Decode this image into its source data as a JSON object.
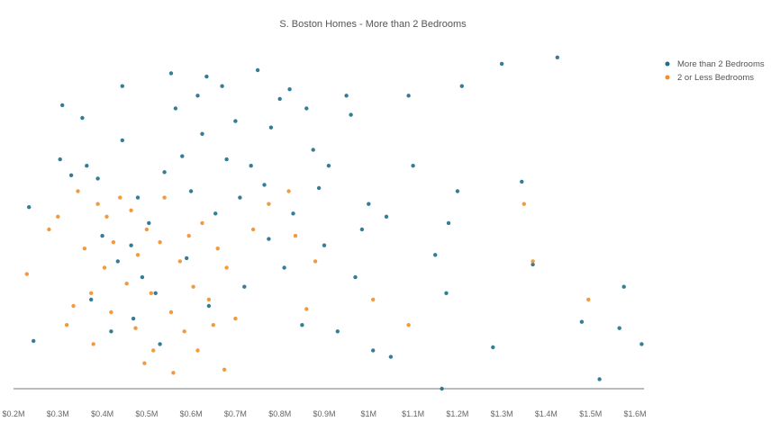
{
  "chart_data": {
    "type": "scatter",
    "title": "S. Boston Homes - More than 2 Bedrooms",
    "xlabel": "",
    "ylabel": "",
    "xlim": [
      0.2,
      1.6
    ],
    "ylim": [
      0,
      100
    ],
    "x_ticks": [
      "$0.2M",
      "$0.3M",
      "$0.4M",
      "$0.5M",
      "$0.6M",
      "$0.7M",
      "$0.8M",
      "$0.9M",
      "$1M",
      "$1.1M",
      "$1.2M",
      "$1.3M",
      "$1.4M",
      "$1.5M",
      "$1.6M"
    ],
    "legend_position": "top-right",
    "grid": false,
    "series": [
      {
        "name": "More than 2 Bedrooms",
        "color": "#1f6f8b",
        "points": [
          [
            0.235,
            57
          ],
          [
            0.245,
            15
          ],
          [
            0.305,
            72
          ],
          [
            0.31,
            89
          ],
          [
            0.33,
            67
          ],
          [
            0.355,
            85
          ],
          [
            0.365,
            70
          ],
          [
            0.375,
            28
          ],
          [
            0.39,
            66
          ],
          [
            0.4,
            48
          ],
          [
            0.42,
            18
          ],
          [
            0.435,
            40
          ],
          [
            0.445,
            78
          ],
          [
            0.445,
            95
          ],
          [
            0.465,
            45
          ],
          [
            0.47,
            22
          ],
          [
            0.48,
            60
          ],
          [
            0.49,
            35
          ],
          [
            0.505,
            52
          ],
          [
            0.52,
            30
          ],
          [
            0.53,
            14
          ],
          [
            0.54,
            68
          ],
          [
            0.555,
            99
          ],
          [
            0.565,
            88
          ],
          [
            0.58,
            73
          ],
          [
            0.59,
            41
          ],
          [
            0.6,
            62
          ],
          [
            0.615,
            92
          ],
          [
            0.625,
            80
          ],
          [
            0.635,
            98
          ],
          [
            0.64,
            26
          ],
          [
            0.655,
            55
          ],
          [
            0.67,
            95
          ],
          [
            0.68,
            72
          ],
          [
            0.7,
            84
          ],
          [
            0.71,
            60
          ],
          [
            0.72,
            32
          ],
          [
            0.735,
            70
          ],
          [
            0.75,
            100
          ],
          [
            0.765,
            64
          ],
          [
            0.775,
            47
          ],
          [
            0.78,
            82
          ],
          [
            0.8,
            91
          ],
          [
            0.81,
            38
          ],
          [
            0.822,
            94
          ],
          [
            0.83,
            55
          ],
          [
            0.85,
            20
          ],
          [
            0.86,
            88
          ],
          [
            0.875,
            75
          ],
          [
            0.888,
            63
          ],
          [
            0.9,
            45
          ],
          [
            0.91,
            70
          ],
          [
            0.93,
            18
          ],
          [
            0.95,
            92
          ],
          [
            0.96,
            86
          ],
          [
            0.97,
            35
          ],
          [
            0.985,
            50
          ],
          [
            1.0,
            58
          ],
          [
            1.01,
            12
          ],
          [
            1.04,
            54
          ],
          [
            1.05,
            10
          ],
          [
            1.09,
            92
          ],
          [
            1.1,
            70
          ],
          [
            1.15,
            42
          ],
          [
            1.165,
            0
          ],
          [
            1.175,
            30
          ],
          [
            1.18,
            52
          ],
          [
            1.2,
            62
          ],
          [
            1.21,
            95
          ],
          [
            1.28,
            13
          ],
          [
            1.3,
            102
          ],
          [
            1.345,
            65
          ],
          [
            1.37,
            39
          ],
          [
            1.425,
            104
          ],
          [
            1.48,
            21
          ],
          [
            1.52,
            3
          ],
          [
            1.565,
            19
          ],
          [
            1.575,
            32
          ],
          [
            1.615,
            14
          ]
        ]
      },
      {
        "name": "2 or Less Bedrooms",
        "color": "#f28e2b",
        "points": [
          [
            0.23,
            36
          ],
          [
            0.28,
            50
          ],
          [
            0.3,
            54
          ],
          [
            0.32,
            20
          ],
          [
            0.335,
            26
          ],
          [
            0.345,
            62
          ],
          [
            0.36,
            44
          ],
          [
            0.375,
            30
          ],
          [
            0.38,
            14
          ],
          [
            0.39,
            58
          ],
          [
            0.405,
            38
          ],
          [
            0.41,
            54
          ],
          [
            0.42,
            24
          ],
          [
            0.425,
            46
          ],
          [
            0.44,
            60
          ],
          [
            0.455,
            33
          ],
          [
            0.465,
            56
          ],
          [
            0.475,
            19
          ],
          [
            0.48,
            42
          ],
          [
            0.495,
            8
          ],
          [
            0.5,
            50
          ],
          [
            0.51,
            30
          ],
          [
            0.515,
            12
          ],
          [
            0.53,
            46
          ],
          [
            0.54,
            60
          ],
          [
            0.555,
            24
          ],
          [
            0.56,
            5
          ],
          [
            0.575,
            40
          ],
          [
            0.585,
            18
          ],
          [
            0.595,
            48
          ],
          [
            0.605,
            32
          ],
          [
            0.615,
            12
          ],
          [
            0.625,
            52
          ],
          [
            0.64,
            28
          ],
          [
            0.65,
            20
          ],
          [
            0.66,
            44
          ],
          [
            0.675,
            6
          ],
          [
            0.68,
            38
          ],
          [
            0.7,
            22
          ],
          [
            0.74,
            50
          ],
          [
            0.775,
            58
          ],
          [
            0.82,
            62
          ],
          [
            0.835,
            48
          ],
          [
            0.86,
            25
          ],
          [
            0.88,
            40
          ],
          [
            1.01,
            28
          ],
          [
            1.09,
            20
          ],
          [
            1.35,
            58
          ],
          [
            1.37,
            40
          ],
          [
            1.495,
            28
          ]
        ]
      }
    ]
  }
}
